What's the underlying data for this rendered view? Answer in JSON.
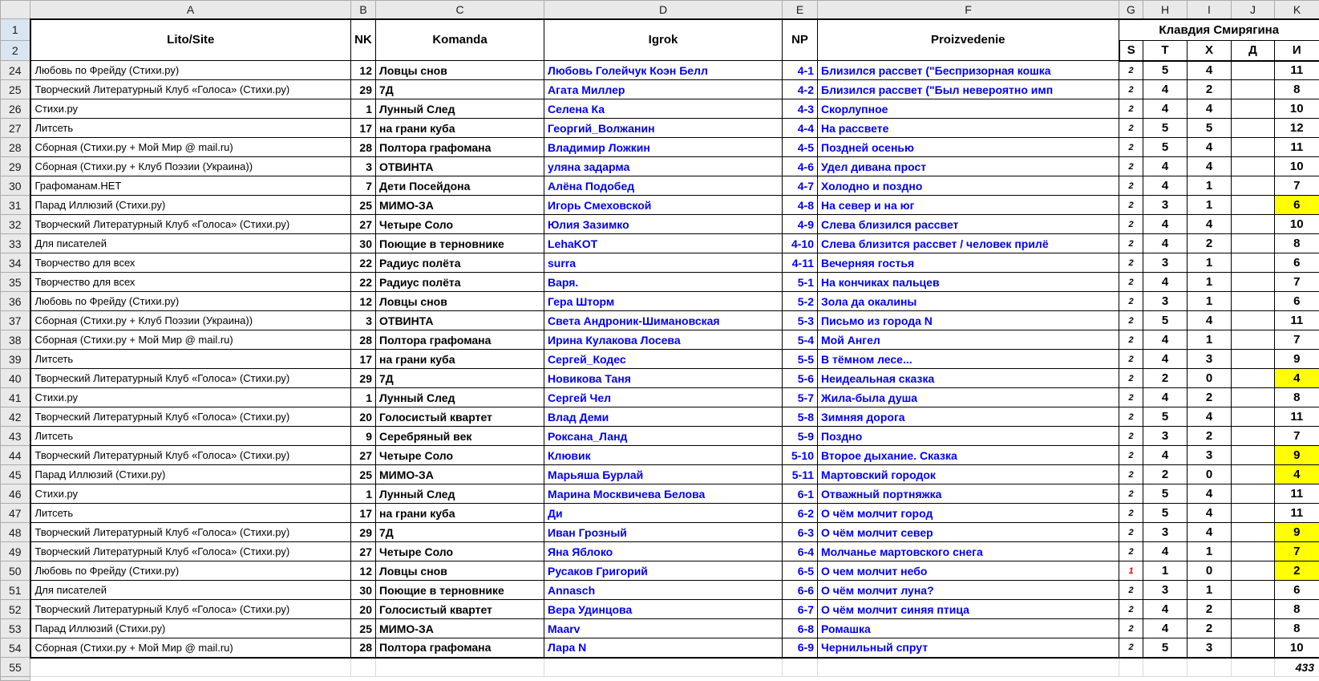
{
  "sheet": {
    "column_letters": [
      "A",
      "B",
      "C",
      "D",
      "E",
      "F",
      "G",
      "H",
      "I",
      "J",
      "K"
    ],
    "row1_label": "1",
    "row2_label": "2",
    "headers": {
      "lito": "Lito/Site",
      "nk": "NK",
      "komanda": "Komanda",
      "igrok": "Igrok",
      "np": "NP",
      "proizvedenie": "Proizvedenie",
      "judge_name": "Клавдия Смирягина",
      "judge_cols": [
        "S",
        "T",
        "X",
        "Д",
        "И"
      ]
    },
    "colors": {
      "highlight_yellow": "#ffff00",
      "link_blue": "#0000ee",
      "red_mark": "#e60000",
      "selected_row_header": "#d9e6f2"
    },
    "rows": [
      {
        "num": "24",
        "lito": "Любовь по Фрейду (Стихи.ру)",
        "nk": "12",
        "komanda": "Ловцы снов",
        "igrok": "Любовь Голейчук Коэн Белл",
        "np": "4-1",
        "proizvedenie": "Близился рассвет (\"Беспризорная кошка",
        "s": "2",
        "t": "5",
        "x": "4",
        "d": "",
        "i": "11",
        "i_highlight": false,
        "s_red": false
      },
      {
        "num": "25",
        "lito": "Творческий Литературный Клуб «Голоса» (Стихи.ру)",
        "nk": "29",
        "komanda": "7Д",
        "igrok": "Агата Миллер",
        "np": "4-2",
        "proizvedenie": "Близился рассвет (\"Был невероятно имп",
        "s": "2",
        "t": "4",
        "x": "2",
        "d": "",
        "i": "8",
        "i_highlight": false,
        "s_red": false
      },
      {
        "num": "26",
        "lito": "Стихи.ру",
        "nk": "1",
        "komanda": "Лунный След",
        "igrok": "Селена Ка",
        "np": "4-3",
        "proizvedenie": "Скорлупное",
        "s": "2",
        "t": "4",
        "x": "4",
        "d": "",
        "i": "10",
        "i_highlight": false,
        "s_red": false
      },
      {
        "num": "27",
        "lito": "Литсеть",
        "nk": "17",
        "komanda": "на грани куба",
        "igrok": "Георгий_Волжанин",
        "np": "4-4",
        "proizvedenie": "На рассвете",
        "s": "2",
        "t": "5",
        "x": "5",
        "d": "",
        "i": "12",
        "i_highlight": false,
        "s_red": false
      },
      {
        "num": "28",
        "lito": "Сборная (Стихи.ру + Мой Мир @ mail.ru)",
        "nk": "28",
        "komanda": "Полтора графомана",
        "igrok": "Владимир Ложкин",
        "np": "4-5",
        "proizvedenie": "Поздней осенью",
        "s": "2",
        "t": "5",
        "x": "4",
        "d": "",
        "i": "11",
        "i_highlight": false,
        "s_red": false
      },
      {
        "num": "29",
        "lito": "Сборная (Стихи.ру + Клуб Поэзии (Украина))",
        "nk": "3",
        "komanda": "ОТВИНТА",
        "igrok": "уляна задарма",
        "np": "4-6",
        "proizvedenie": "Удел дивана прост",
        "s": "2",
        "t": "4",
        "x": "4",
        "d": "",
        "i": "10",
        "i_highlight": false,
        "s_red": false
      },
      {
        "num": "30",
        "lito": "Графоманам.НЕТ",
        "nk": "7",
        "komanda": "Дети Посейдона",
        "igrok": "Алёна Подобед",
        "np": "4-7",
        "proizvedenie": "Холодно и поздно",
        "s": "2",
        "t": "4",
        "x": "1",
        "d": "",
        "i": "7",
        "i_highlight": false,
        "s_red": false
      },
      {
        "num": "31",
        "lito": "Парад Иллюзий (Стихи.ру)",
        "nk": "25",
        "komanda": "МИМО-ЗА",
        "igrok": "Игорь Смеховской",
        "np": "4-8",
        "proizvedenie": "На север и на юг",
        "s": "2",
        "t": "3",
        "x": "1",
        "d": "",
        "i": "6",
        "i_highlight": true,
        "s_red": false
      },
      {
        "num": "32",
        "lito": "Творческий Литературный Клуб «Голоса» (Стихи.ру)",
        "nk": "27",
        "komanda": "Четыре Соло",
        "igrok": "Юлия Зазимко",
        "np": "4-9",
        "proizvedenie": "Слева близился рассвет",
        "s": "2",
        "t": "4",
        "x": "4",
        "d": "",
        "i": "10",
        "i_highlight": false,
        "s_red": false
      },
      {
        "num": "33",
        "lito": "Для писателей",
        "nk": "30",
        "komanda": "Поющие в терновнике",
        "igrok": "LehaKOT",
        "np": "4-10",
        "proizvedenie": "Слева близится рассвет / человек прилё",
        "s": "2",
        "t": "4",
        "x": "2",
        "d": "",
        "i": "8",
        "i_highlight": false,
        "s_red": false
      },
      {
        "num": "34",
        "lito": "Творчество для всех",
        "nk": "22",
        "komanda": "Радиус полёта",
        "igrok": "surra",
        "np": "4-11",
        "proizvedenie": "Вечерняя гостья",
        "s": "2",
        "t": "3",
        "x": "1",
        "d": "",
        "i": "6",
        "i_highlight": false,
        "s_red": false
      },
      {
        "num": "35",
        "lito": "Творчество для всех",
        "nk": "22",
        "komanda": "Радиус полёта",
        "igrok": "Варя.",
        "np": "5-1",
        "proizvedenie": "На кончиках пальцев",
        "s": "2",
        "t": "4",
        "x": "1",
        "d": "",
        "i": "7",
        "i_highlight": false,
        "s_red": false
      },
      {
        "num": "36",
        "lito": "Любовь по Фрейду (Стихи.ру)",
        "nk": "12",
        "komanda": "Ловцы снов",
        "igrok": "Гера Шторм",
        "np": "5-2",
        "proizvedenie": "Зола да окалины",
        "s": "2",
        "t": "3",
        "x": "1",
        "d": "",
        "i": "6",
        "i_highlight": false,
        "s_red": false
      },
      {
        "num": "37",
        "lito": "Сборная (Стихи.ру + Клуб Поэзии (Украина))",
        "nk": "3",
        "komanda": "ОТВИНТА",
        "igrok": "Света Андроник-Шимановская",
        "np": "5-3",
        "proizvedenie": "Письмо из города N",
        "s": "2",
        "t": "5",
        "x": "4",
        "d": "",
        "i": "11",
        "i_highlight": false,
        "s_red": false
      },
      {
        "num": "38",
        "lito": "Сборная (Стихи.ру + Мой Мир @ mail.ru)",
        "nk": "28",
        "komanda": "Полтора графомана",
        "igrok": "Ирина Кулакова Лосева",
        "np": "5-4",
        "proizvedenie": "Мой Ангел",
        "s": "2",
        "t": "4",
        "x": "1",
        "d": "",
        "i": "7",
        "i_highlight": false,
        "s_red": false
      },
      {
        "num": "39",
        "lito": "Литсеть",
        "nk": "17",
        "komanda": "на грани куба",
        "igrok": "Сергей_Кодес",
        "np": "5-5",
        "proizvedenie": "В тёмном лесе...",
        "s": "2",
        "t": "4",
        "x": "3",
        "d": "",
        "i": "9",
        "i_highlight": false,
        "s_red": false
      },
      {
        "num": "40",
        "lito": "Творческий Литературный Клуб «Голоса» (Стихи.ру)",
        "nk": "29",
        "komanda": "7Д",
        "igrok": "Новикова Таня",
        "np": "5-6",
        "proizvedenie": "Неидеальная сказка",
        "s": "2",
        "t": "2",
        "x": "0",
        "d": "",
        "i": "4",
        "i_highlight": true,
        "s_red": false
      },
      {
        "num": "41",
        "lito": "Стихи.ру",
        "nk": "1",
        "komanda": "Лунный След",
        "igrok": "Сергей Чел",
        "np": "5-7",
        "proizvedenie": "Жила-была душа",
        "s": "2",
        "t": "4",
        "x": "2",
        "d": "",
        "i": "8",
        "i_highlight": false,
        "s_red": false
      },
      {
        "num": "42",
        "lito": "Творческий Литературный Клуб «Голоса» (Стихи.ру)",
        "nk": "20",
        "komanda": "Голосистый квартет",
        "igrok": "Влад Деми",
        "np": "5-8",
        "proizvedenie": "Зимняя дорога",
        "s": "2",
        "t": "5",
        "x": "4",
        "d": "",
        "i": "11",
        "i_highlight": false,
        "s_red": false
      },
      {
        "num": "43",
        "lito": "Литсеть",
        "nk": "9",
        "komanda": "Серебряный век",
        "igrok": "Роксана_Ланд",
        "np": "5-9",
        "proizvedenie": "Поздно",
        "s": "2",
        "t": "3",
        "x": "2",
        "d": "",
        "i": "7",
        "i_highlight": false,
        "s_red": false
      },
      {
        "num": "44",
        "lito": "Творческий Литературный Клуб «Голоса» (Стихи.ру)",
        "nk": "27",
        "komanda": "Четыре Соло",
        "igrok": "Клювик",
        "np": "5-10",
        "proizvedenie": "Второе дыхание. Сказка",
        "s": "2",
        "t": "4",
        "x": "3",
        "d": "",
        "i": "9",
        "i_highlight": true,
        "s_red": false
      },
      {
        "num": "45",
        "lito": "Парад Иллюзий (Стихи.ру)",
        "nk": "25",
        "komanda": "МИМО-ЗА",
        "igrok": "Марьяша Бурлай",
        "np": "5-11",
        "proizvedenie": "Мартовский городок",
        "s": "2",
        "t": "2",
        "x": "0",
        "d": "",
        "i": "4",
        "i_highlight": true,
        "s_red": false
      },
      {
        "num": "46",
        "lito": "Стихи.ру",
        "nk": "1",
        "komanda": "Лунный След",
        "igrok": "Марина Москвичева Белова",
        "np": "6-1",
        "proizvedenie": "Отважный портняжка",
        "s": "2",
        "t": "5",
        "x": "4",
        "d": "",
        "i": "11",
        "i_highlight": false,
        "s_red": false
      },
      {
        "num": "47",
        "lito": "Литсеть",
        "nk": "17",
        "komanda": "на грани куба",
        "igrok": "Ди",
        "np": "6-2",
        "proizvedenie": "О чём молчит город",
        "s": "2",
        "t": "5",
        "x": "4",
        "d": "",
        "i": "11",
        "i_highlight": false,
        "s_red": false
      },
      {
        "num": "48",
        "lito": "Творческий Литературный Клуб «Голоса» (Стихи.ру)",
        "nk": "29",
        "komanda": "7Д",
        "igrok": "Иван Грозный",
        "np": "6-3",
        "proizvedenie": "О чём молчит север",
        "s": "2",
        "t": "3",
        "x": "4",
        "d": "",
        "i": "9",
        "i_highlight": true,
        "s_red": false
      },
      {
        "num": "49",
        "lito": "Творческий Литературный Клуб «Голоса» (Стихи.ру)",
        "nk": "27",
        "komanda": "Четыре Соло",
        "igrok": "Яна Яблоко",
        "np": "6-4",
        "proizvedenie": "Молчанье мартовского снега",
        "s": "2",
        "t": "4",
        "x": "1",
        "d": "",
        "i": "7",
        "i_highlight": true,
        "s_red": false
      },
      {
        "num": "50",
        "lito": "Любовь по Фрейду (Стихи.ру)",
        "nk": "12",
        "komanda": "Ловцы снов",
        "igrok": "Русаков Григорий",
        "np": "6-5",
        "proizvedenie": "О чем молчит небо",
        "s": "1",
        "t": "1",
        "x": "0",
        "d": "",
        "i": "2",
        "i_highlight": true,
        "s_red": true
      },
      {
        "num": "51",
        "lito": "Для писателей",
        "nk": "30",
        "komanda": "Поющие в терновнике",
        "igrok": "Annasch",
        "np": "6-6",
        "proizvedenie": "О чём молчит луна?",
        "s": "2",
        "t": "3",
        "x": "1",
        "d": "",
        "i": "6",
        "i_highlight": false,
        "s_red": false
      },
      {
        "num": "52",
        "lito": "Творческий Литературный Клуб «Голоса» (Стихи.ру)",
        "nk": "20",
        "komanda": "Голосистый квартет",
        "igrok": "Вера Удинцова",
        "np": "6-7",
        "proizvedenie": "О чём молчит синяя птица",
        "s": "2",
        "t": "4",
        "x": "2",
        "d": "",
        "i": "8",
        "i_highlight": false,
        "s_red": false
      },
      {
        "num": "53",
        "lito": "Парад Иллюзий (Стихи.ру)",
        "nk": "25",
        "komanda": "МИМО-ЗА",
        "igrok": "Maarv",
        "np": "6-8",
        "proizvedenie": "Ромашка",
        "s": "2",
        "t": "4",
        "x": "2",
        "d": "",
        "i": "8",
        "i_highlight": false,
        "s_red": false
      },
      {
        "num": "54",
        "lito": "Сборная (Стихи.ру + Мой Мир @ mail.ru)",
        "nk": "28",
        "komanda": "Полтора графомана",
        "igrok": "Лара N",
        "np": "6-9",
        "proizvedenie": "Чернильный спрут",
        "s": "2",
        "t": "5",
        "x": "3",
        "d": "",
        "i": "10",
        "i_highlight": false,
        "s_red": false
      }
    ],
    "total_row": {
      "num": "55",
      "total": "433"
    }
  }
}
